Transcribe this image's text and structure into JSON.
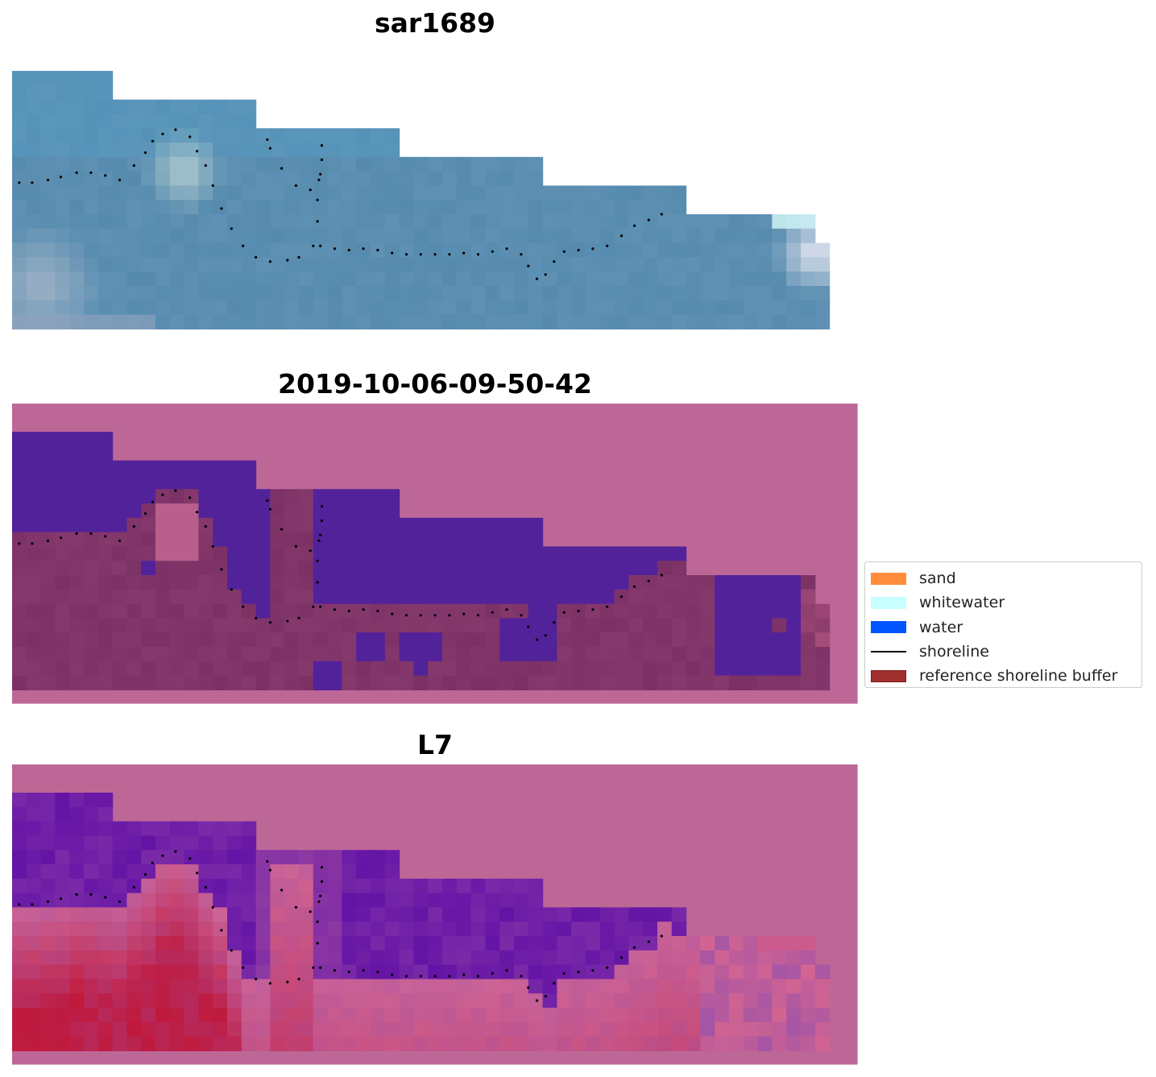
{
  "figure": {
    "panels": [
      {
        "title": "sar1689",
        "kind": "rgb-satellite"
      },
      {
        "title": "2019-10-06-09-50-42",
        "kind": "classified"
      },
      {
        "title": "L7",
        "kind": "index"
      }
    ]
  },
  "legend": {
    "placement": "center-right",
    "items": [
      {
        "label": "sand",
        "type": "patch",
        "color": "#ff8c3a"
      },
      {
        "label": "whitewater",
        "type": "patch",
        "color": "#c8ffff"
      },
      {
        "label": "water",
        "type": "patch",
        "color": "#0055ff"
      },
      {
        "label": "shoreline",
        "type": "line",
        "color": "#000000"
      },
      {
        "label": "reference shoreline buffer",
        "type": "patch",
        "color": "#a0302e"
      }
    ]
  },
  "colors": {
    "buffer_pink": "#bd6797",
    "water_purple": "#52229a",
    "land_maroon": "#7c3166",
    "sar_blue": "#5f91b5",
    "l7_red": "#c0193c",
    "shoreline_dots": "#000000"
  }
}
